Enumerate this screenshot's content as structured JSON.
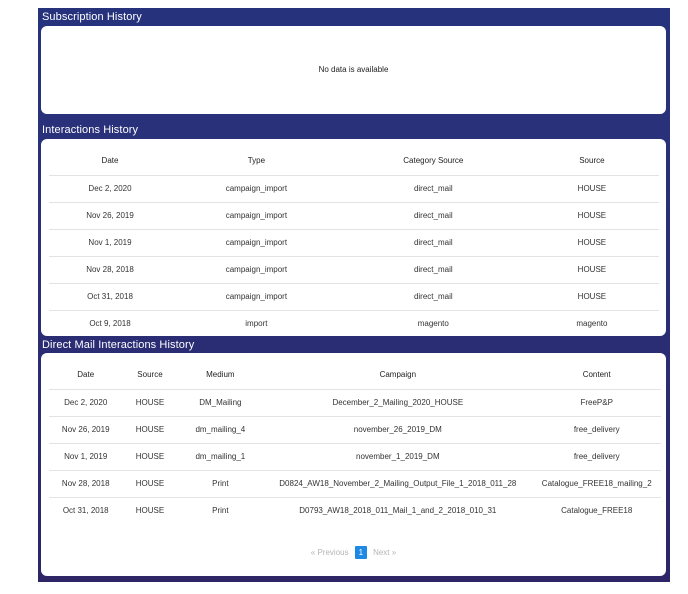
{
  "subscription": {
    "title": "Subscription History",
    "empty_message": "No data is available"
  },
  "interactions": {
    "title": "Interactions History",
    "columns": [
      "Date",
      "Type",
      "Category Source",
      "Source"
    ],
    "rows": [
      [
        "Dec 2, 2020",
        "campaign_import",
        "direct_mail",
        "HOUSE"
      ],
      [
        "Nov 26, 2019",
        "campaign_import",
        "direct_mail",
        "HOUSE"
      ],
      [
        "Nov 1, 2019",
        "campaign_import",
        "direct_mail",
        "HOUSE"
      ],
      [
        "Nov 28, 2018",
        "campaign_import",
        "direct_mail",
        "HOUSE"
      ],
      [
        "Oct 31, 2018",
        "campaign_import",
        "direct_mail",
        "HOUSE"
      ],
      [
        "Oct 9, 2018",
        "import",
        "magento",
        "magento"
      ]
    ]
  },
  "direct_mail": {
    "title": "Direct Mail Interactions History",
    "columns": [
      "Date",
      "Source",
      "Medium",
      "Campaign",
      "Content"
    ],
    "rows": [
      [
        "Dec 2, 2020",
        "HOUSE",
        "DM_Mailing",
        "December_2_Mailing_2020_HOUSE",
        "FreeP&P"
      ],
      [
        "Nov 26, 2019",
        "HOUSE",
        "dm_mailing_4",
        "november_26_2019_DM",
        "free_delivery"
      ],
      [
        "Nov 1, 2019",
        "HOUSE",
        "dm_mailing_1",
        "november_1_2019_DM",
        "free_delivery"
      ],
      [
        "Nov 28, 2018",
        "HOUSE",
        "Print",
        "D0824_AW18_November_2_Mailing_Output_File_1_2018_011_28",
        "Catalogue_FREE18_mailing_2"
      ],
      [
        "Oct 31, 2018",
        "HOUSE",
        "Print",
        "D0793_AW18_2018_011_Mail_1_and_2_2018_010_31",
        "Catalogue_FREE18"
      ]
    ],
    "pagination": {
      "prev_label": "« Previous",
      "current_page": "1",
      "next_label": "Next »"
    }
  },
  "colors": {
    "panel_background": "#2a2f78",
    "card_background": "#ffffff",
    "pager_active": "#1e88e5"
  }
}
